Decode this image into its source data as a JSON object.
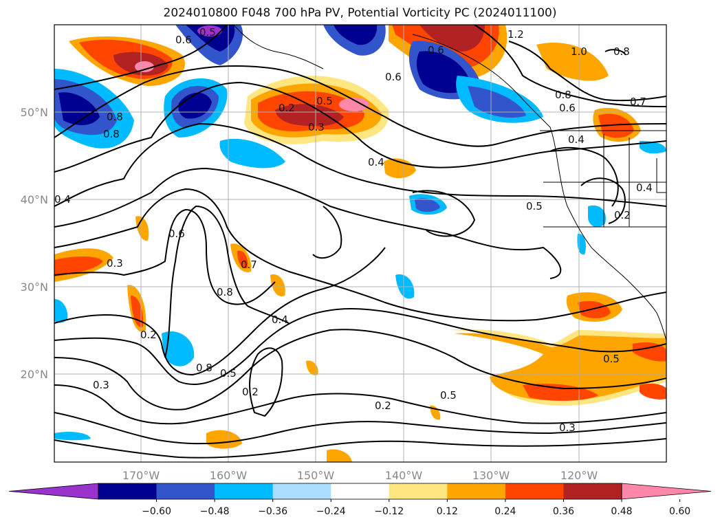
{
  "title": "2024010800 F048 700 hPa PV, Potential Vorticity PC (2024011100)",
  "lat_labels": [
    "50°N",
    "40°N",
    "30°N",
    "20°N"
  ],
  "lon_labels": [
    "170°W",
    "160°W",
    "150°W",
    "140°W",
    "130°W",
    "120°W"
  ],
  "colorbar": {
    "ticks": [
      "−0.60",
      "−0.48",
      "−0.36",
      "−0.24",
      "−0.12",
      "0.12",
      "0.24",
      "0.36",
      "0.48",
      "0.60"
    ],
    "colors": [
      "#9933cc",
      "#000090",
      "#3355cc",
      "#00bbff",
      "#aaddff",
      "#ffffff",
      "#ffe680",
      "#ffa500",
      "#ff4500",
      "#b22222",
      "#ff88aa"
    ]
  },
  "contour_labels": [
    "0.6",
    "0.5",
    "1.2",
    "1.0",
    "0.8",
    "0.6",
    "0.5",
    "0.2",
    "0.3",
    "0.8",
    "0.6",
    "0.7",
    "0.4",
    "0.4",
    "0.8",
    "0.5",
    "0.2",
    "0.4",
    "0.6",
    "0.3",
    "0.7",
    "0.8",
    "0.4",
    "0.2",
    "0.8",
    "0.5",
    "0.2",
    "0.3",
    "0.5",
    "0.2",
    "0.3",
    "0.5",
    "0.4",
    "0.8",
    "0.6"
  ]
}
